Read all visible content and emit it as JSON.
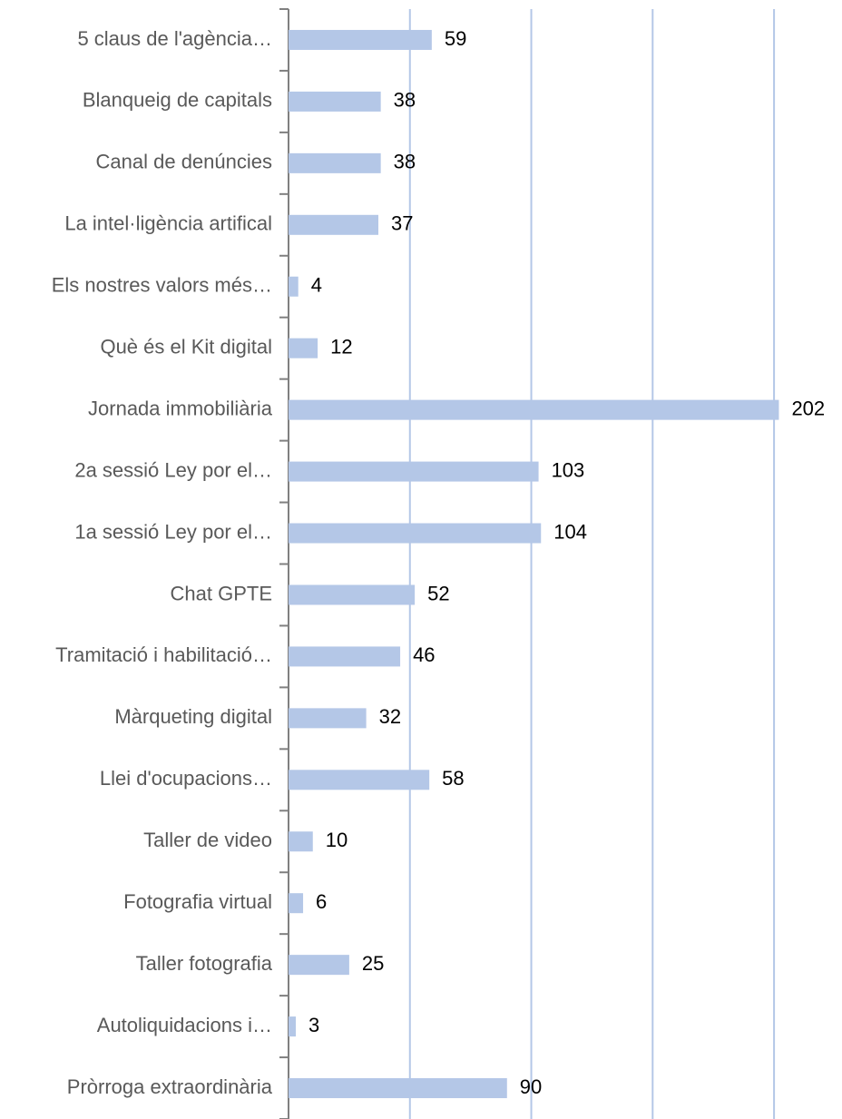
{
  "chart_data": {
    "type": "barh",
    "categories": [
      "5 claus de l'agència…",
      "Blanqueig de capitals",
      "Canal de denúncies",
      "La intel·ligència artifical",
      "Els nostres valors més…",
      "Què és el Kit digital",
      "Jornada immobiliària",
      "2a sessió Ley por el…",
      "1a sessió Ley por el…",
      "Chat GPTE",
      "Tramitació i habilitació…",
      "Màrqueting digital",
      "Llei d'ocupacions…",
      "Taller de video",
      "Fotografia virtual",
      "Taller fotografia",
      "Autoliquidacions i…",
      "Pròrroga extraordinària"
    ],
    "values": [
      59,
      38,
      38,
      37,
      4,
      12,
      202,
      103,
      104,
      52,
      46,
      32,
      58,
      10,
      6,
      25,
      3,
      90
    ],
    "color": "#b4c7e7",
    "xlim": [
      0,
      228
    ],
    "xticks": [
      50,
      100,
      150,
      200
    ],
    "grid": true
  }
}
